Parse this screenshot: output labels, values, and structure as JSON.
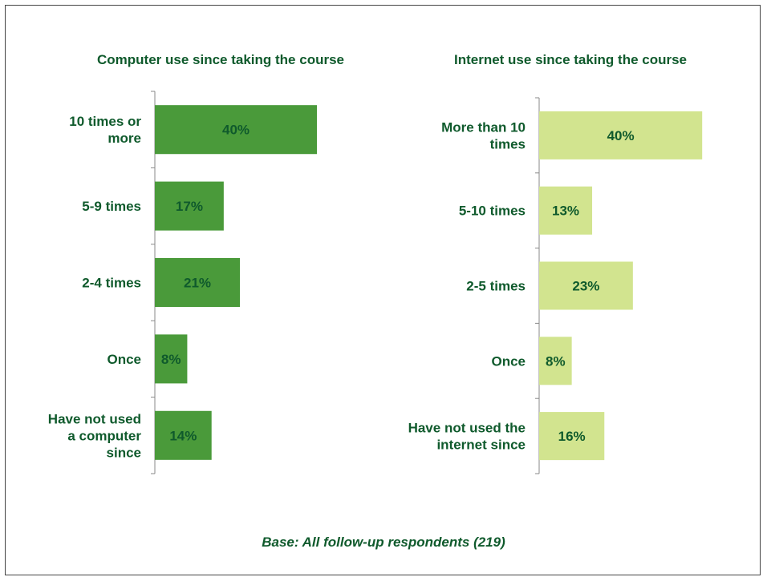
{
  "chart_data": [
    {
      "type": "bar",
      "orientation": "horizontal",
      "title": "Computer use since taking the course",
      "categories": [
        [
          "10 times or",
          "more"
        ],
        [
          "5-9 times"
        ],
        [
          "2-4 times"
        ],
        [
          "Once"
        ],
        [
          "Have not used",
          "a computer",
          "since"
        ]
      ],
      "values": [
        40,
        17,
        21,
        8,
        14
      ],
      "labels": [
        "40%",
        "17%",
        "21%",
        "8%",
        "14%"
      ],
      "unit": "%",
      "xlim": [
        0,
        50
      ],
      "color": "#4a9a3a",
      "grid": false
    },
    {
      "type": "bar",
      "orientation": "horizontal",
      "title": "Internet use since taking the course",
      "categories": [
        [
          "More than 10",
          "times"
        ],
        [
          "5-10 times"
        ],
        [
          "2-5 times"
        ],
        [
          "Once"
        ],
        [
          "Have not used the",
          "internet since"
        ]
      ],
      "values": [
        40,
        13,
        23,
        8,
        16
      ],
      "labels": [
        "40%",
        "13%",
        "23%",
        "8%",
        "16%"
      ],
      "unit": "%",
      "xlim": [
        0,
        50
      ],
      "color": "#d2e48f",
      "grid": false
    }
  ],
  "footnote": "Base: All follow-up respondents (219)",
  "colors": {
    "text": "#0f5a2c",
    "axis": "#888888"
  }
}
